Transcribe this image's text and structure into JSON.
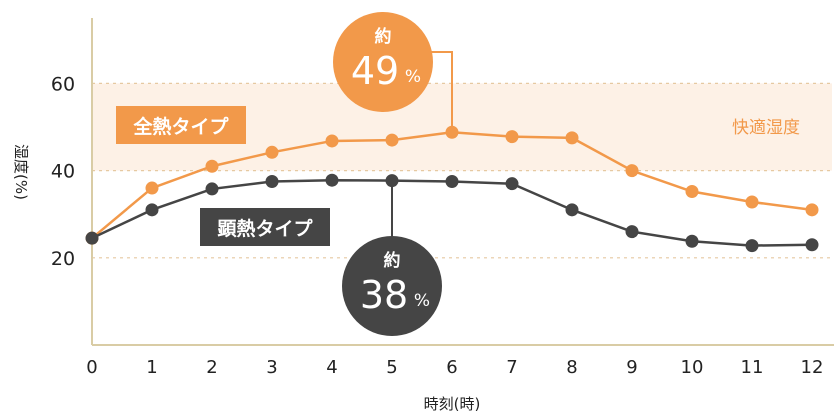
{
  "chart_data": {
    "type": "line",
    "xlabel": "時刻(時)",
    "ylabel": "湿度(%)",
    "x": [
      0,
      1,
      2,
      3,
      4,
      5,
      6,
      7,
      8,
      9,
      10,
      11,
      12
    ],
    "ylim": [
      0,
      75
    ],
    "yticks": [
      20,
      40,
      60
    ],
    "comfort_band": {
      "label": "快適湿度",
      "range": [
        40,
        60
      ],
      "color": "#fdf1e6"
    },
    "series": [
      {
        "name": "全熱タイプ",
        "color": "#f2994a",
        "values": [
          24.5,
          36,
          41,
          44.2,
          46.8,
          47,
          48.8,
          47.8,
          47.5,
          40,
          35.2,
          32.8,
          31
        ]
      },
      {
        "name": "顕熱タイプ",
        "color": "#454545",
        "values": [
          24.5,
          31,
          35.8,
          37.5,
          37.8,
          37.7,
          37.5,
          37,
          31,
          26,
          23.8,
          22.8,
          23
        ]
      }
    ],
    "callouts": [
      {
        "prefix": "約",
        "value": "49",
        "unit": "%",
        "x": 6,
        "color": "#f2994a"
      },
      {
        "prefix": "約",
        "value": "38",
        "unit": "%",
        "x": 5,
        "color": "#454545"
      }
    ]
  }
}
